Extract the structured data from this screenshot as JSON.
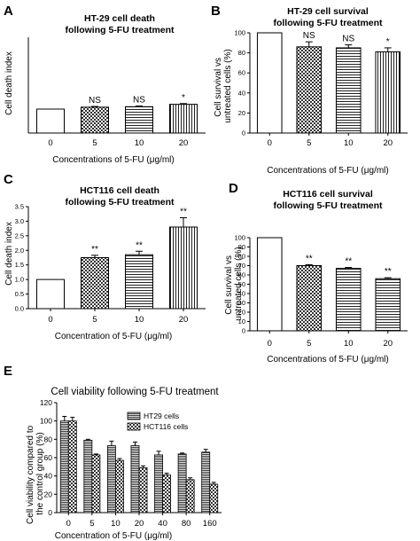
{
  "chart_data": [
    {
      "panel": "A",
      "type": "bar",
      "title_lines": [
        "HT-29 cell death",
        "following 5-FU treatment"
      ],
      "xlabel": "Concentrations of 5-FU (μg/ml)",
      "ylabel": "Cell death index",
      "categories": [
        "0",
        "5",
        "10",
        "20"
      ],
      "values": [
        1.0,
        1.08,
        1.1,
        1.2
      ],
      "errors": [
        0,
        0.03,
        0.03,
        0.03
      ],
      "patterns": [
        "white",
        "checker",
        "hlines",
        "vlines"
      ],
      "annotations": [
        "",
        "NS",
        "NS",
        "*"
      ],
      "ylim": [
        0,
        4
      ],
      "yticks": [],
      "grid": false
    },
    {
      "panel": "B",
      "type": "bar",
      "title_lines": [
        "HT-29 cell survival",
        "following 5-FU treatment"
      ],
      "xlabel": "Concentrations of 5-FU (μg/ml)",
      "ylabel": "Cell survival vs untreated cells (%)",
      "categories": [
        "0",
        "5",
        "10",
        "20"
      ],
      "values": [
        100,
        86,
        85,
        81
      ],
      "errors": [
        0,
        5,
        3,
        4
      ],
      "patterns": [
        "white",
        "checker",
        "hlines",
        "vlines"
      ],
      "annotations": [
        "",
        "NS",
        "NS",
        "*"
      ],
      "ylim": [
        0,
        100
      ],
      "yticks": [
        0,
        20,
        40,
        60,
        80,
        100
      ],
      "grid": false
    },
    {
      "panel": "C",
      "type": "bar",
      "title_lines": [
        "HCT116 cell death",
        "following 5-FU treatment"
      ],
      "xlabel": "Concentration of 5-FU (μg/ml)",
      "ylabel": "Cell death index",
      "categories": [
        "0",
        "5",
        "10",
        "20"
      ],
      "values": [
        1.0,
        1.75,
        1.85,
        2.8
      ],
      "errors": [
        0,
        0.08,
        0.12,
        0.32
      ],
      "patterns": [
        "white",
        "checker",
        "hlines",
        "vlines"
      ],
      "annotations": [
        "",
        "**",
        "**",
        "**"
      ],
      "ylim": [
        0,
        3.5
      ],
      "yticks": [
        0.0,
        0.5,
        1.0,
        1.5,
        2.0,
        2.5,
        3.0,
        3.5
      ],
      "grid": false
    },
    {
      "panel": "D",
      "type": "bar",
      "title_lines": [
        "HCT116 cell survival",
        "following 5-FU treatment"
      ],
      "xlabel": "Concentrations of 5-FU (μg/ml)",
      "ylabel": "Cell survival vs untreated cells (%)",
      "categories": [
        "0",
        "5",
        "10",
        "20"
      ],
      "values": [
        100,
        70,
        67,
        56
      ],
      "errors": [
        0,
        1,
        1,
        1
      ],
      "patterns": [
        "white",
        "checker",
        "hlines",
        "hlines"
      ],
      "annotations": [
        "",
        "**",
        "**",
        "**"
      ],
      "ylim": [
        0,
        100
      ],
      "yticks": [
        0,
        10,
        20,
        30,
        40,
        50,
        60,
        70,
        80,
        90,
        100
      ],
      "grid": false
    },
    {
      "panel": "E",
      "type": "bar",
      "title": "Cell viability following 5-FU treatment",
      "xlabel": "Concentration of 5-FU (μg/ml)",
      "ylabel": "Cell viability compared to the control group (%)",
      "categories": [
        "0",
        "5",
        "10",
        "20",
        "40",
        "80",
        "160"
      ],
      "series": [
        {
          "name": "HT29 cells",
          "values": [
            100,
            79,
            73,
            73,
            63,
            64,
            66
          ],
          "errors": [
            5,
            1,
            5,
            4,
            4,
            1,
            3
          ],
          "pattern": "hlines-dark"
        },
        {
          "name": "HCT116 cells",
          "values": [
            100,
            63,
            57,
            49,
            41,
            36,
            31
          ],
          "errors": [
            4,
            1,
            2,
            2,
            2,
            2,
            2
          ],
          "pattern": "checker"
        }
      ],
      "ylim": [
        0,
        120
      ],
      "yticks": [
        0,
        20,
        40,
        60,
        80,
        100,
        120
      ],
      "legend": "top-right",
      "grid": false
    }
  ],
  "colors": {
    "ink": "#000000",
    "background": "#ffffff"
  }
}
